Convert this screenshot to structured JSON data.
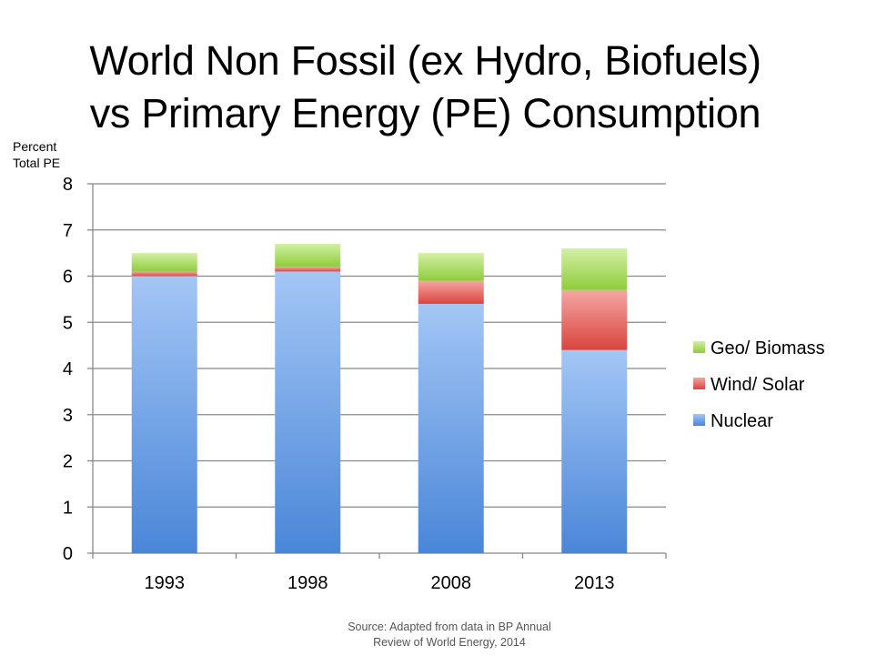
{
  "chart_data": {
    "type": "bar",
    "stacked": true,
    "title_lines": [
      "World Non Fossil (ex Hydro, Biofuels)",
      "vs Primary Energy (PE) Consumption"
    ],
    "ylabel_lines": [
      "Percent",
      "Total PE"
    ],
    "xlabel": "",
    "ylim": [
      0,
      8
    ],
    "yticks": [
      0,
      1,
      2,
      3,
      4,
      5,
      6,
      7,
      8
    ],
    "grid": true,
    "legend_position": "right",
    "categories": [
      "1993",
      "1998",
      "2008",
      "2013"
    ],
    "series": [
      {
        "name": "Nuclear",
        "values": [
          6.0,
          6.1,
          5.4,
          4.4
        ],
        "color": "#4a86d8",
        "color_light": "#a3c6f5"
      },
      {
        "name": "Wind/ Solar",
        "values": [
          0.1,
          0.1,
          0.5,
          1.3
        ],
        "color": "#d9453e",
        "color_light": "#f5a6a3"
      },
      {
        "name": "Geo/ Biomass",
        "values": [
          0.4,
          0.5,
          0.6,
          0.9
        ],
        "color": "#8fcc3c",
        "color_light": "#d2f0a3"
      }
    ],
    "source_lines": [
      "Source: Adapted from data in BP Annual",
      "Review of World Energy, 2014"
    ]
  }
}
